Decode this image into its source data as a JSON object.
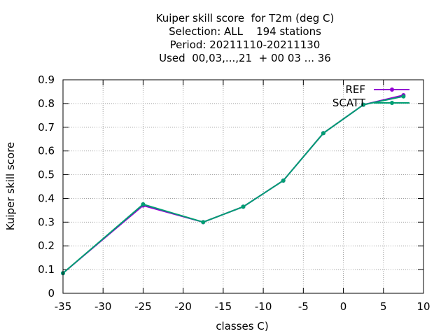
{
  "chart_data": {
    "type": "line",
    "title_lines": [
      "Kuiper skill score  for T2m (deg C)",
      "Selection: ALL    194 stations",
      "Period: 20211110-20211130",
      "Used  00,03,...,21  + 00 03 ... 36"
    ],
    "xlabel": "classes C)",
    "ylabel": "Kuiper skill score",
    "xlim": [
      -35,
      10
    ],
    "ylim": [
      0,
      0.9
    ],
    "xticks": [
      -35,
      -30,
      -25,
      -20,
      -15,
      -10,
      -5,
      0,
      5,
      10
    ],
    "xtick_labels": [
      "-35",
      "-30",
      "-25",
      "-20",
      "-15",
      "-10",
      "-5",
      "0",
      "5",
      "10"
    ],
    "yticks": [
      0,
      0.1,
      0.2,
      0.3,
      0.4,
      0.5,
      0.6,
      0.7,
      0.8,
      0.9
    ],
    "ytick_labels": [
      "0",
      "0.1",
      "0.2",
      "0.3",
      "0.4",
      "0.5",
      "0.6",
      "0.7",
      "0.8",
      "0.9"
    ],
    "grid": true,
    "legend_position": "top-right",
    "series": [
      {
        "name": "REF",
        "color": "#9400d3",
        "x": [
          -35,
          -25,
          -17.5,
          -12.5,
          -7.5,
          -2.5,
          2.5,
          7.5
        ],
        "y": [
          0.085,
          0.37,
          0.3,
          0.365,
          0.475,
          0.675,
          0.795,
          0.835
        ]
      },
      {
        "name": "SCATT",
        "color": "#009e73",
        "x": [
          -35,
          -25,
          -17.5,
          -12.5,
          -7.5,
          -2.5,
          2.5,
          7.5
        ],
        "y": [
          0.085,
          0.375,
          0.3,
          0.365,
          0.475,
          0.675,
          0.795,
          0.83
        ]
      }
    ]
  }
}
